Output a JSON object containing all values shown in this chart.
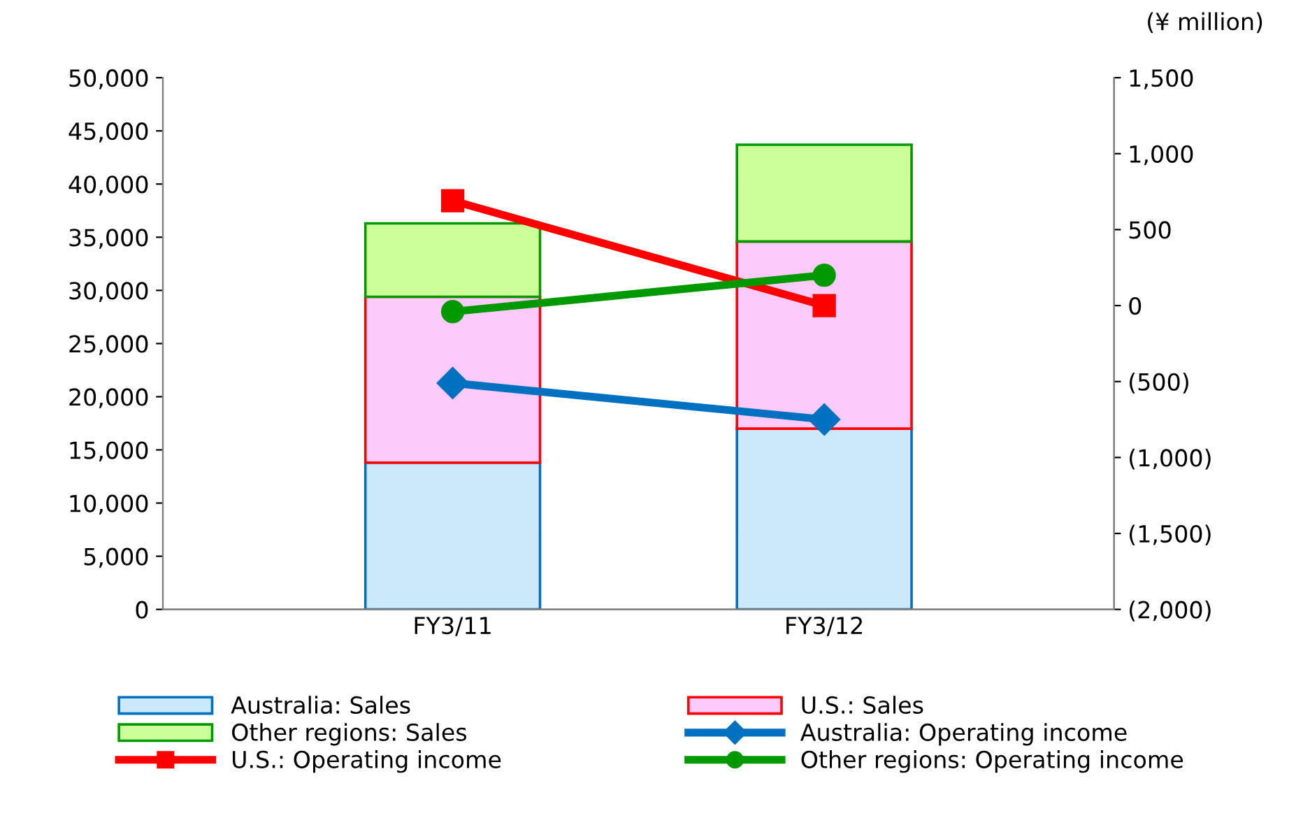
{
  "chart_data": {
    "type": "bar",
    "stacked": true,
    "categories": [
      "FY3/11",
      "FY3/12"
    ],
    "annotations": [
      "(¥ million)"
    ],
    "series": [
      {
        "name": "Australia: Sales",
        "color": "#cce9fb",
        "values": [
          13800,
          17000
        ]
      },
      {
        "name": "U.S.: Sales",
        "color": "#fccbfc",
        "values": [
          15600,
          17600
        ]
      },
      {
        "name": "Other regions: Sales",
        "color": "#ccff99",
        "values": [
          6900,
          9100
        ]
      },
      {
        "name": "Australia: Operating income",
        "type": "line",
        "axis": "y2",
        "marker": "diamond",
        "color": "#0070c0",
        "values": [
          -510,
          -750
        ]
      },
      {
        "name": "U.S.: Operating income",
        "type": "line",
        "axis": "y2",
        "marker": "square",
        "color": "#ff0000",
        "values": [
          690,
          0
        ]
      },
      {
        "name": "Other regions: Operating income",
        "type": "line",
        "axis": "y2",
        "marker": "circle",
        "color": "#009900",
        "values": [
          -40,
          200
        ]
      }
    ],
    "ylim": [
      0,
      50000
    ],
    "yticks": [
      {
        "value": 0,
        "label": "0"
      },
      {
        "value": 5000,
        "label": "5,000"
      },
      {
        "value": 10000,
        "label": "10,000"
      },
      {
        "value": 15000,
        "label": "15,000"
      },
      {
        "value": 20000,
        "label": "20,000"
      },
      {
        "value": 25000,
        "label": "25,000"
      },
      {
        "value": 30000,
        "label": "30,000"
      },
      {
        "value": 35000,
        "label": "35,000"
      },
      {
        "value": 40000,
        "label": "40,000"
      },
      {
        "value": 45000,
        "label": "45,000"
      },
      {
        "value": 50000,
        "label": "50,000"
      }
    ],
    "y2lim": [
      -2000,
      1500
    ],
    "y2ticks": [
      {
        "value": -2000,
        "label": "(2,000)"
      },
      {
        "value": -1500,
        "label": "(1,500)"
      },
      {
        "value": -1000,
        "label": "(1,000)"
      },
      {
        "value": -500,
        "label": "(500)"
      },
      0,
      500,
      {
        "value": 1000,
        "label": "1,000"
      },
      {
        "value": 1500,
        "label": "1,500"
      }
    ],
    "grid": false,
    "legend": "bottom",
    "line_style": "solid"
  }
}
